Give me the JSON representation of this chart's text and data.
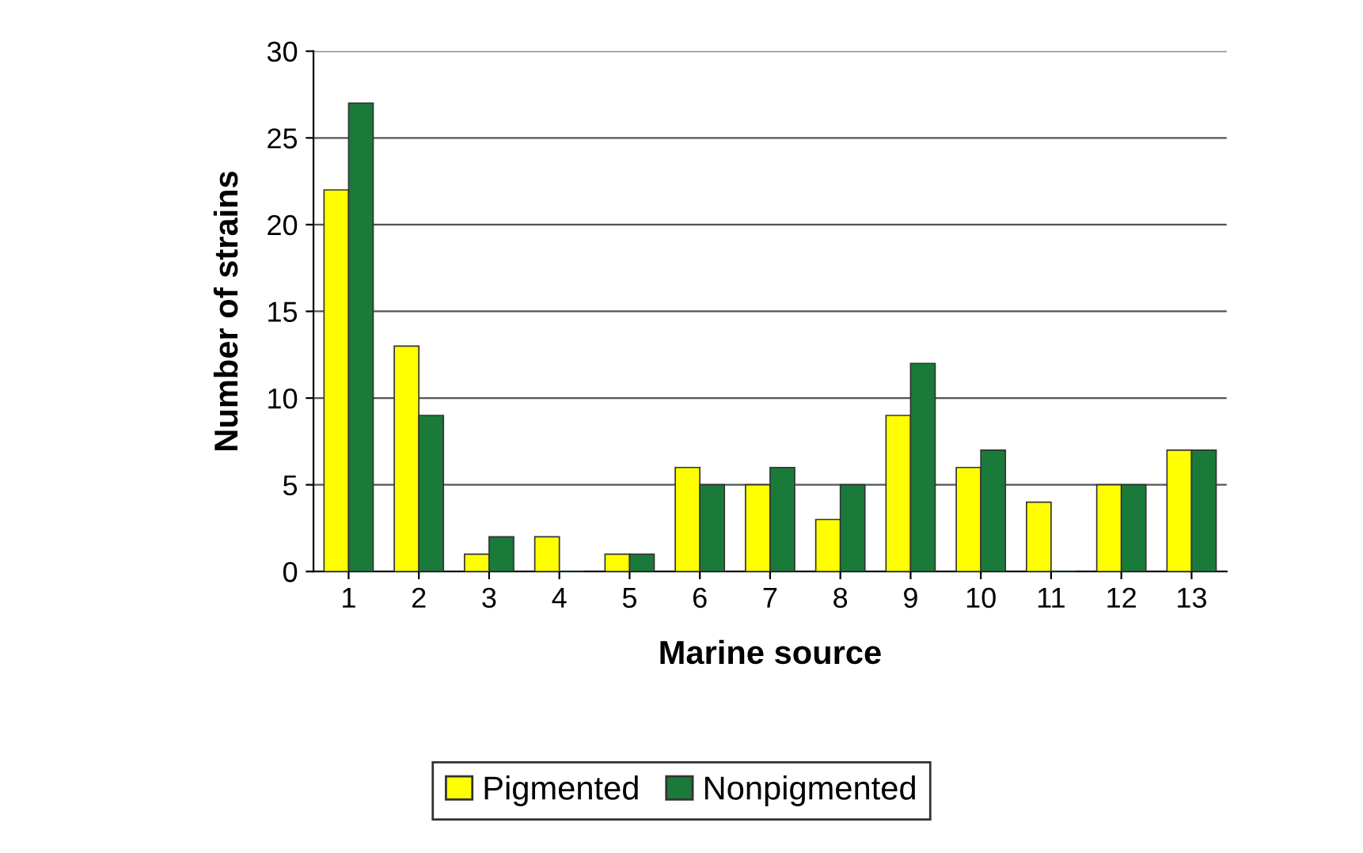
{
  "chart_data": {
    "type": "bar",
    "xlabel": "Marine source",
    "ylabel": "Number of strains",
    "categories": [
      "1",
      "2",
      "3",
      "4",
      "5",
      "6",
      "7",
      "8",
      "9",
      "10",
      "11",
      "12",
      "13"
    ],
    "series": [
      {
        "name": "Pigmented",
        "color": "#ffff00",
        "values": [
          22,
          13,
          1,
          2,
          1,
          6,
          5,
          3,
          9,
          6,
          4,
          5,
          7
        ]
      },
      {
        "name": "Nonpigmented",
        "color": "#1a7a3a",
        "values": [
          27,
          9,
          2,
          0,
          1,
          5,
          6,
          5,
          12,
          7,
          0,
          5,
          7
        ]
      }
    ],
    "ylim": [
      0,
      30
    ],
    "yticks": [
      0,
      5,
      10,
      15,
      20,
      25,
      30
    ],
    "grid": "y",
    "legend": "bottom"
  }
}
